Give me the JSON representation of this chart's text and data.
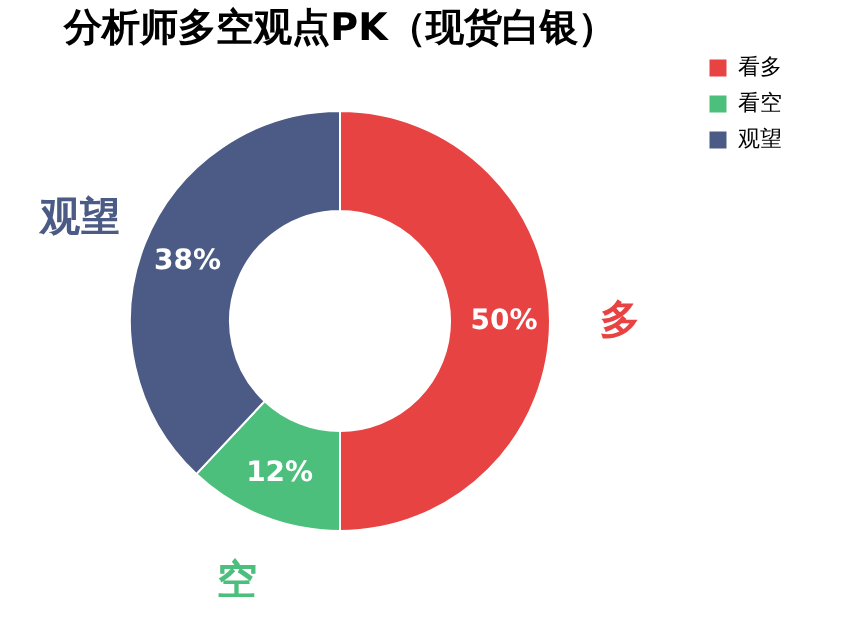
{
  "chart_data": {
    "type": "donut",
    "title": "分析师多空观点PK（现货白银）",
    "categories": [
      "看多",
      "看空",
      "观望"
    ],
    "values": [
      50,
      12,
      38
    ],
    "colors": [
      "#e84343",
      "#4cbf7c",
      "#4b5b85"
    ],
    "value_labels": [
      "50%",
      "12%",
      "38%"
    ],
    "legend": "right",
    "annotations": [
      "多",
      "空",
      "观望"
    ]
  }
}
